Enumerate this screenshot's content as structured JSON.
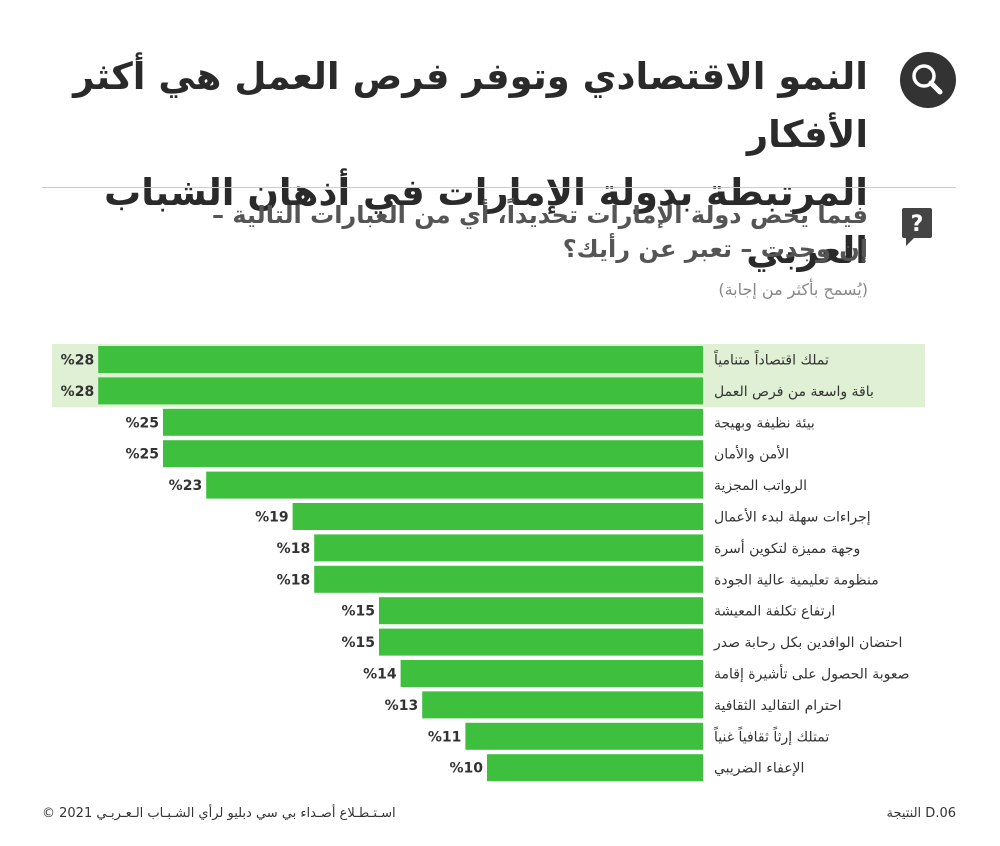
{
  "header": {
    "title_line1": "النمو الاقتصادي وتوفر فرص العمل هي أكثر الأفكار",
    "title_line2": "المرتبطة بدولة الإمارات في أذهان الشباب العربي",
    "search_icon": "search-icon"
  },
  "question": {
    "line1": "فيما يخص دولة الإمارات تحديداً، أي من العبارات التالية –",
    "line2": "إن وجدت – تعبر عن رأيك؟",
    "note": "(يُسمح بأكثر من إجابة)",
    "icon": "question-speech-icon"
  },
  "chart_data": {
    "type": "bar",
    "orientation": "horizontal",
    "categories": [
      "تملك اقتصاداً متنامياً",
      "باقة واسعة من فرص العمل",
      "بيئة نظيفة وبهيجة",
      "الأمن والأمان",
      "الرواتب المجزية",
      "إجراءات سهلة لبدء الأعمال",
      "وجهة مميزة لتكوين أسرة",
      "منظومة تعليمية عالية الجودة",
      "ارتفاع تكلفة المعيشة",
      "احتضان الوافدين بكل رحابة صدر",
      "صعوبة الحصول على تأشيرة إقامة",
      "احترام التقاليد الثقافية",
      "تمتلك إرثاً ثقافياً غنياً",
      "الإعفاء الضريبي"
    ],
    "values": [
      28,
      28,
      25,
      25,
      23,
      19,
      18,
      18,
      15,
      15,
      14,
      13,
      11,
      10
    ],
    "value_labels": [
      "%28",
      "%28",
      "%25",
      "%25",
      "%23",
      "%19",
      "%18",
      "%18",
      "%15",
      "%15",
      "%14",
      "%13",
      "%11",
      "%10"
    ],
    "highlighted": [
      0,
      1
    ],
    "bar_color": "#3ebf3e",
    "highlight_color": "#dff0d4"
  },
  "footer": {
    "left": "©  اسـتـطـلاع أصـداء بي سي دبليو لرأي الشـبـاب الـعـربـي 2021",
    "right": "النتيجة D.06"
  }
}
